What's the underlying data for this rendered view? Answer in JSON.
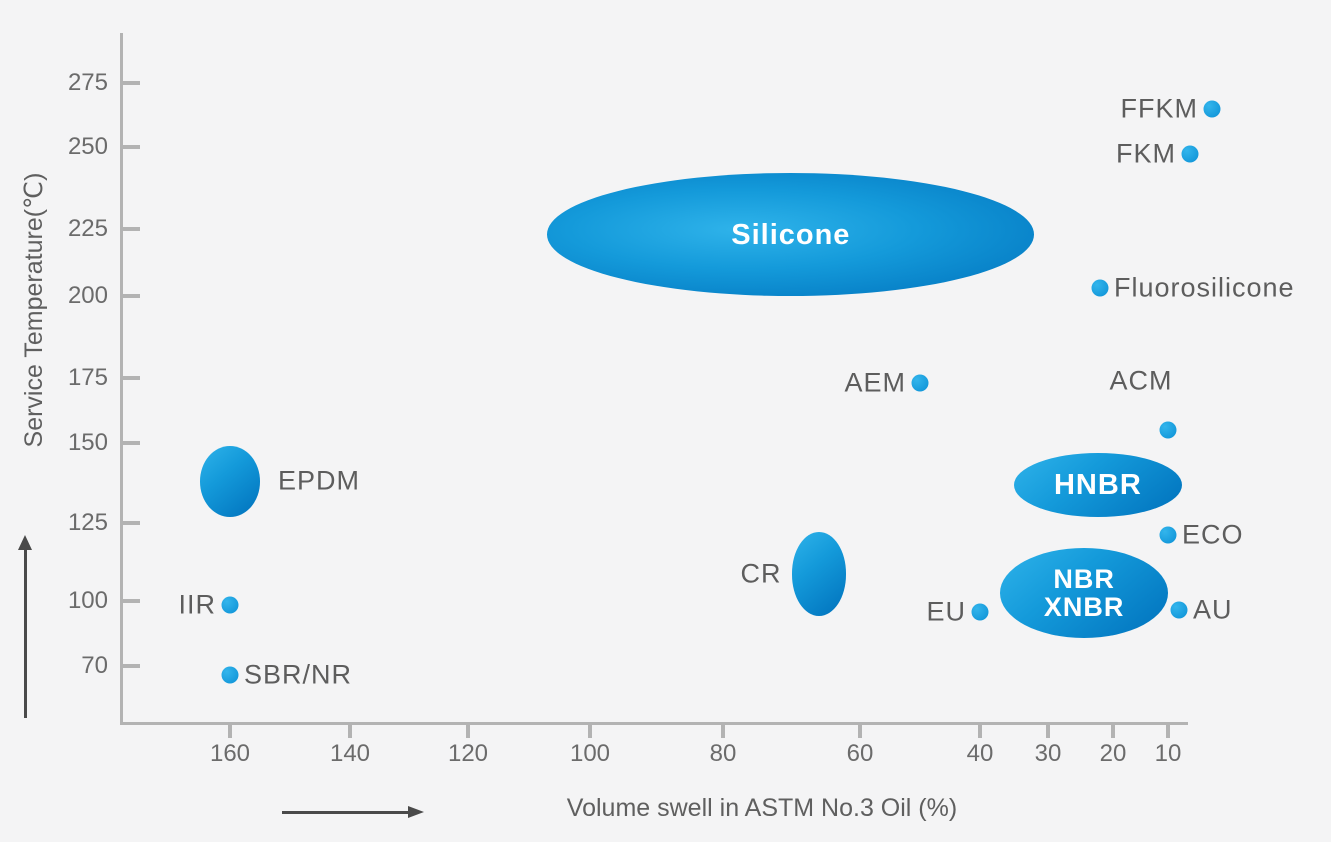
{
  "colors": {
    "background": "#f4f4f5",
    "axis": "#b3b3b3",
    "tick_text": "#6b6b6b",
    "label_text": "#5d5d5d",
    "arrow": "#4a4a4a",
    "bubble_gradient_light": "#2fb3ea",
    "bubble_gradient_dark": "#0071bc",
    "dot_fill": "#0f97d7",
    "region_label_text": "#ffffff"
  },
  "chart_data": {
    "type": "scatter",
    "xlabel": "Volume swell in ASTM No.3 Oil (%)",
    "ylabel": "Service Temperature(℃)",
    "x_axis": {
      "ticks": [
        160,
        140,
        120,
        100,
        80,
        60,
        40,
        30,
        20,
        10
      ],
      "direction": "values decrease to the right (reversed, non-linear spacing)",
      "unit": "%"
    },
    "y_axis": {
      "ticks": [
        275,
        250,
        225,
        200,
        175,
        150,
        125,
        100,
        70
      ],
      "unit": "°C"
    },
    "legend": "none",
    "grid": false,
    "points": [
      {
        "name": "FFKM",
        "swell": 2,
        "temp": 265,
        "label_side": "left"
      },
      {
        "name": "FKM",
        "swell": 6,
        "temp": 248,
        "label_side": "left"
      },
      {
        "name": "Fluorosilicone",
        "swell": 22,
        "temp": 203,
        "label_side": "right"
      },
      {
        "name": "AEM",
        "swell": 50,
        "temp": 173,
        "label_side": "left"
      },
      {
        "name": "ACM",
        "swell": 10,
        "temp": 155,
        "label_side": "above"
      },
      {
        "name": "ECO",
        "swell": 10,
        "temp": 121,
        "label_side": "right"
      },
      {
        "name": "EU",
        "swell": 40,
        "temp": 95,
        "label_side": "left"
      },
      {
        "name": "AU",
        "swell": 8,
        "temp": 96,
        "label_side": "right"
      },
      {
        "name": "IIR",
        "swell": 160,
        "temp": 98,
        "label_side": "left"
      },
      {
        "name": "SBR/NR",
        "swell": 160,
        "temp": 66,
        "label_side": "right"
      }
    ],
    "regions": [
      {
        "name": "Silicone",
        "label_lines": [
          "Silicone"
        ],
        "label_position": "inside",
        "swell_range": [
          107,
          32
        ],
        "temp_range": [
          242,
          200
        ]
      },
      {
        "name": "EPDM",
        "label_lines": [
          "EPDM"
        ],
        "label_position": "right",
        "swell_range": [
          165,
          155
        ],
        "temp_range": [
          149,
          127
        ]
      },
      {
        "name": "HNBR",
        "label_lines": [
          "HNBR"
        ],
        "label_position": "inside",
        "swell_range": [
          35,
          7.5
        ],
        "temp_range": [
          147,
          127
        ]
      },
      {
        "name": "NBR/XNBR",
        "label_lines": [
          "NBR",
          "XNBR"
        ],
        "label_position": "inside",
        "swell_range": [
          37,
          10
        ],
        "temp_range": [
          117,
          83
        ]
      },
      {
        "name": "CR",
        "label_lines": [
          "CR"
        ],
        "label_position": "left",
        "swell_range": [
          70,
          62
        ],
        "temp_range": [
          122,
          93
        ]
      }
    ]
  }
}
